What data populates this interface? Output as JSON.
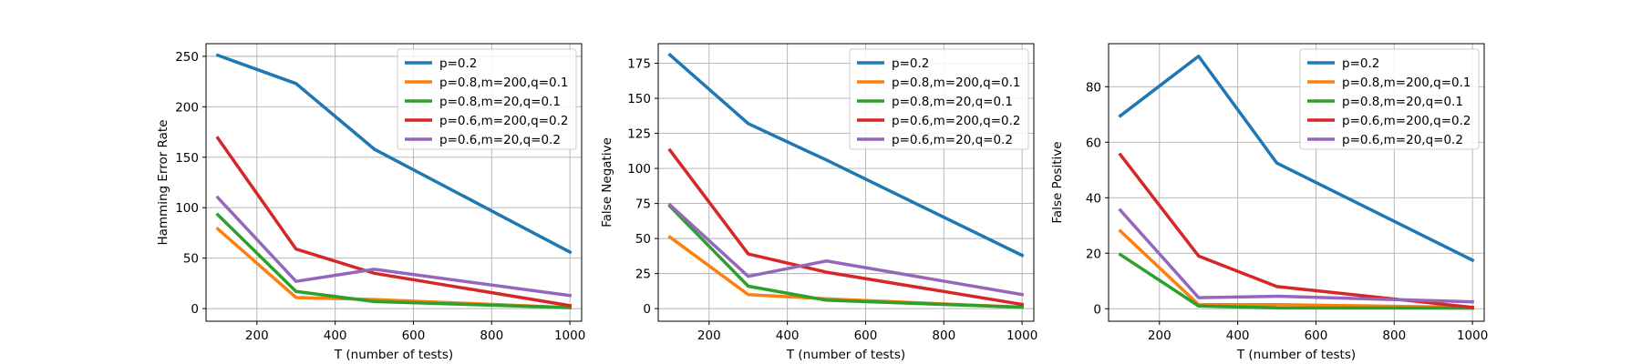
{
  "colors": {
    "blue": "#1f77b4",
    "orange": "#ff7f0e",
    "green": "#2ca02c",
    "red": "#d62728",
    "purple": "#9467bd"
  },
  "chart_data": [
    {
      "type": "line",
      "title": "",
      "xlabel": "T (number of tests)",
      "ylabel": "Hamming Error Rate",
      "xlim": [
        70,
        1030
      ],
      "ylim": [
        -12.5,
        262.5
      ],
      "xticks": [
        200,
        400,
        600,
        800,
        1000
      ],
      "yticks": [
        0,
        50,
        100,
        150,
        200,
        250
      ],
      "grid": true,
      "legend_position": "top-right",
      "x": [
        100,
        300,
        500,
        1000
      ],
      "series": [
        {
          "name": "p=0.2",
          "color": "#1f77b4",
          "values": [
            251,
            223,
            158,
            56
          ]
        },
        {
          "name": "p=0.8,m=200,q=0.1",
          "color": "#ff7f0e",
          "values": [
            79,
            11,
            9,
            1
          ]
        },
        {
          "name": "p=0.8,m=20,q=0.1",
          "color": "#2ca02c",
          "values": [
            93,
            17,
            7,
            1
          ]
        },
        {
          "name": "p=0.6,m=200,q=0.2",
          "color": "#d62728",
          "values": [
            169,
            59,
            35,
            3
          ]
        },
        {
          "name": "p=0.6,m=20,q=0.2",
          "color": "#9467bd",
          "values": [
            110,
            27,
            39,
            13
          ]
        }
      ]
    },
    {
      "type": "line",
      "title": "",
      "xlabel": "T (number of tests)",
      "ylabel": "False Negative",
      "xlim": [
        70,
        1030
      ],
      "ylim": [
        -9,
        189
      ],
      "xticks": [
        200,
        400,
        600,
        800,
        1000
      ],
      "yticks": [
        0,
        25,
        50,
        75,
        100,
        125,
        150,
        175
      ],
      "grid": true,
      "legend_position": "top-right",
      "x": [
        100,
        300,
        500,
        1000
      ],
      "series": [
        {
          "name": "p=0.2",
          "color": "#1f77b4",
          "values": [
            181,
            132,
            106,
            38
          ]
        },
        {
          "name": "p=0.8,m=200,q=0.1",
          "color": "#ff7f0e",
          "values": [
            51,
            10,
            7,
            1
          ]
        },
        {
          "name": "p=0.8,m=20,q=0.1",
          "color": "#2ca02c",
          "values": [
            73,
            16,
            6,
            1
          ]
        },
        {
          "name": "p=0.6,m=200,q=0.2",
          "color": "#d62728",
          "values": [
            113,
            39,
            26,
            3
          ]
        },
        {
          "name": "p=0.6,m=20,q=0.2",
          "color": "#9467bd",
          "values": [
            74,
            23,
            34,
            10
          ]
        }
      ]
    },
    {
      "type": "line",
      "title": "",
      "xlabel": "T (number of tests)",
      "ylabel": "False Positive",
      "xlim": [
        70,
        1030
      ],
      "ylim": [
        -4.5,
        95.5
      ],
      "xticks": [
        200,
        400,
        600,
        800,
        1000
      ],
      "yticks": [
        0,
        20,
        40,
        60,
        80
      ],
      "grid": true,
      "legend_position": "top-right",
      "x": [
        100,
        300,
        500,
        1000
      ],
      "series": [
        {
          "name": "p=0.2",
          "color": "#1f77b4",
          "values": [
            69.5,
            91,
            52.5,
            17.5
          ]
        },
        {
          "name": "p=0.8,m=200,q=0.1",
          "color": "#ff7f0e",
          "values": [
            28,
            1.5,
            1.5,
            0.5
          ]
        },
        {
          "name": "p=0.8,m=20,q=0.1",
          "color": "#2ca02c",
          "values": [
            19.5,
            1,
            0.3,
            0.2
          ]
        },
        {
          "name": "p=0.6,m=200,q=0.2",
          "color": "#d62728",
          "values": [
            55.5,
            19,
            8,
            0.5
          ]
        },
        {
          "name": "p=0.6,m=20,q=0.2",
          "color": "#9467bd",
          "values": [
            35.5,
            4,
            4.5,
            2.5
          ]
        }
      ]
    }
  ]
}
